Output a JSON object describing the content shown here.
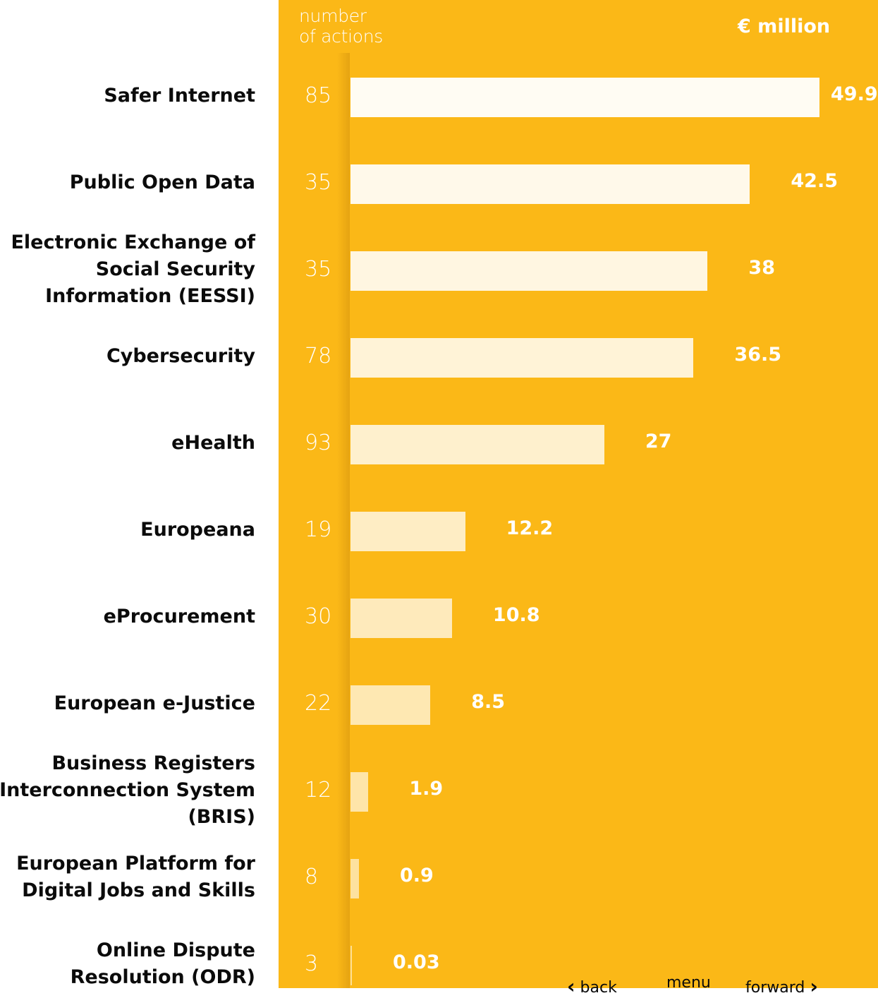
{
  "header": {
    "actions_label": "number\nof actions",
    "value_label": "€ million"
  },
  "nav": {
    "back": "back",
    "menu": "menu",
    "forward": "forward"
  },
  "colors": {
    "panel": "#fbb817",
    "label_text": "#0b0b0b",
    "value_text": "#ffffff"
  },
  "chart_data": {
    "type": "bar",
    "orientation": "horizontal",
    "categories": [
      "Safer Internet",
      "Public Open Data",
      "Electronic Exchange of\nSocial Security\nInformation (EESSI)",
      "Cybersecurity",
      "eHealth",
      "Europeana",
      "eProcurement",
      "European e-Justice",
      "Business Registers\nInterconnection System\n(BRIS)",
      "European Platform for\nDigital Jobs and Skills",
      "Online Dispute\nResolution (ODR)"
    ],
    "actions": [
      85,
      35,
      35,
      78,
      93,
      19,
      30,
      22,
      12,
      8,
      3
    ],
    "values": [
      49.9,
      42.5,
      38,
      36.5,
      27,
      12.2,
      10.8,
      8.5,
      1.9,
      0.9,
      0.03
    ],
    "value_labels": [
      "49.9",
      "42.5",
      "38",
      "36.5",
      "27",
      "12.2",
      "10.8",
      "8.5",
      "1.9",
      "0.9",
      "0.03"
    ],
    "xlim": [
      0,
      49.9
    ]
  }
}
